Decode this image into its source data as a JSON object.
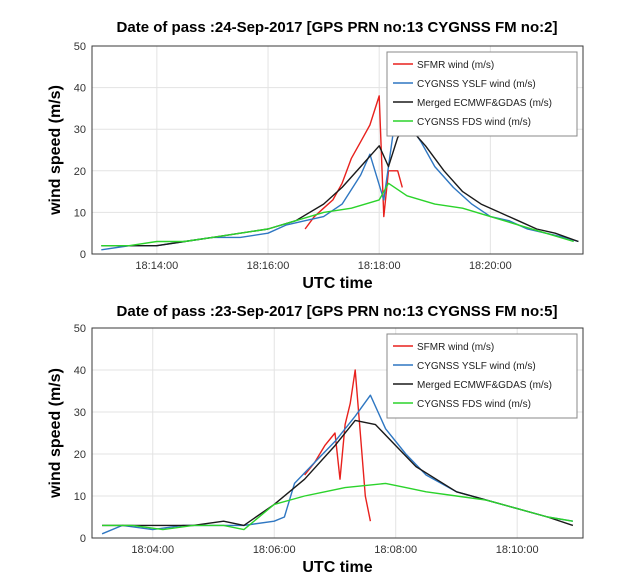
{
  "chart_data": [
    {
      "type": "line",
      "title": "Date of pass :24-Sep-2017 [GPS PRN no:13 CYGNSS FM no:2]",
      "xlabel": "UTC time",
      "ylabel": "wind speed (m/s)",
      "xlim": [
        "18:12:50",
        "18:21:40"
      ],
      "ylim": [
        0,
        50
      ],
      "xticks": [
        "18:14:00",
        "18:16:00",
        "18:18:00",
        "18:20:00"
      ],
      "yticks": [
        0,
        10,
        20,
        30,
        40,
        50
      ],
      "grid": true,
      "legend_position": "top-right",
      "series": [
        {
          "name": "SFMR wind (m/s)",
          "color": "#e8211d",
          "x": [
            "18:16:40",
            "18:16:50",
            "18:17:00",
            "18:17:10",
            "18:17:20",
            "18:17:30",
            "18:17:40",
            "18:17:50",
            "18:18:00",
            "18:18:05",
            "18:18:10",
            "18:18:20",
            "18:18:25"
          ],
          "y": [
            6,
            9,
            11,
            13,
            17,
            23,
            27,
            31,
            38,
            9,
            20,
            20,
            16
          ]
        },
        {
          "name": "CYGNSS YSLF wind (m/s)",
          "color": "#2f77c2",
          "x": [
            "18:13:00",
            "18:13:30",
            "18:14:00",
            "18:14:30",
            "18:15:00",
            "18:15:30",
            "18:16:00",
            "18:16:20",
            "18:16:40",
            "18:17:00",
            "18:17:20",
            "18:17:40",
            "18:17:50",
            "18:18:05",
            "18:18:15",
            "18:18:30",
            "18:18:45",
            "18:19:00",
            "18:19:20",
            "18:19:40",
            "18:20:00",
            "18:20:20",
            "18:20:40",
            "18:21:00",
            "18:21:20",
            "18:21:35"
          ],
          "y": [
            1,
            2,
            2,
            3,
            4,
            4,
            5,
            7,
            8,
            9,
            12,
            19,
            24,
            13,
            29,
            32,
            27,
            21,
            16,
            12,
            9,
            8,
            6,
            5,
            4,
            3
          ]
        },
        {
          "name": "Merged ECMWF&GDAS (m/s)",
          "color": "#1a1a1a",
          "x": [
            "18:13:00",
            "18:13:30",
            "18:14:00",
            "18:14:30",
            "18:15:00",
            "18:15:30",
            "18:16:00",
            "18:16:30",
            "18:17:00",
            "18:17:20",
            "18:17:40",
            "18:18:00",
            "18:18:10",
            "18:18:20",
            "18:18:30",
            "18:18:50",
            "18:19:10",
            "18:19:30",
            "18:19:50",
            "18:20:10",
            "18:20:30",
            "18:20:50",
            "18:21:10",
            "18:21:35"
          ],
          "y": [
            2,
            2,
            2,
            3,
            4,
            5,
            6,
            8,
            12,
            16,
            21,
            26,
            21,
            28,
            31,
            26,
            20,
            15,
            12,
            10,
            8,
            6,
            5,
            3
          ]
        },
        {
          "name": "CYGNSS FDS wind (m/s)",
          "color": "#2bd32b",
          "x": [
            "18:13:00",
            "18:13:30",
            "18:14:00",
            "18:14:30",
            "18:15:00",
            "18:15:30",
            "18:16:00",
            "18:16:30",
            "18:17:00",
            "18:17:30",
            "18:18:00",
            "18:18:10",
            "18:18:30",
            "18:19:00",
            "18:19:30",
            "18:20:00",
            "18:20:30",
            "18:21:00",
            "18:21:30"
          ],
          "y": [
            2,
            2,
            3,
            3,
            4,
            5,
            6,
            8,
            10,
            11,
            13,
            17,
            14,
            12,
            11,
            9,
            7,
            5,
            3
          ]
        }
      ]
    },
    {
      "type": "line",
      "title": "Date of pass :23-Sep-2017 [GPS PRN no:13 CYGNSS FM no:5]",
      "xlabel": "UTC time",
      "ylabel": "wind speed (m/s)",
      "xlim": [
        "18:03:00",
        "18:11:05"
      ],
      "ylim": [
        0,
        50
      ],
      "xticks": [
        "18:04:00",
        "18:06:00",
        "18:08:00",
        "18:10:00"
      ],
      "yticks": [
        0,
        10,
        20,
        30,
        40,
        50
      ],
      "grid": true,
      "legend_position": "top-right",
      "series": [
        {
          "name": "SFMR wind (m/s)",
          "color": "#e8211d",
          "x": [
            "18:06:30",
            "18:06:40",
            "18:06:50",
            "18:07:00",
            "18:07:05",
            "18:07:10",
            "18:07:15",
            "18:07:20",
            "18:07:25",
            "18:07:30",
            "18:07:35"
          ],
          "y": [
            15,
            18,
            22,
            25,
            14,
            27,
            32,
            40,
            25,
            10,
            4
          ]
        },
        {
          "name": "CYGNSS YSLF wind (m/s)",
          "color": "#2f77c2",
          "x": [
            "18:03:10",
            "18:03:30",
            "18:04:00",
            "18:04:30",
            "18:05:00",
            "18:05:30",
            "18:06:00",
            "18:06:10",
            "18:06:20",
            "18:06:40",
            "18:07:00",
            "18:07:20",
            "18:07:35",
            "18:07:50",
            "18:08:10",
            "18:08:30",
            "18:09:00",
            "18:09:30",
            "18:10:00",
            "18:10:30",
            "18:10:55"
          ],
          "y": [
            1,
            3,
            2,
            3,
            3,
            3,
            4,
            5,
            13,
            18,
            23,
            29,
            34,
            26,
            20,
            15,
            11,
            9,
            7,
            5,
            4
          ]
        },
        {
          "name": "Merged ECMWF&GDAS (m/s)",
          "color": "#1a1a1a",
          "x": [
            "18:03:10",
            "18:03:40",
            "18:04:10",
            "18:04:40",
            "18:05:10",
            "18:05:30",
            "18:06:00",
            "18:06:30",
            "18:07:00",
            "18:07:20",
            "18:07:40",
            "18:08:00",
            "18:08:20",
            "18:08:40",
            "18:09:00",
            "18:09:30",
            "18:10:00",
            "18:10:30",
            "18:10:55"
          ],
          "y": [
            3,
            3,
            3,
            3,
            4,
            3,
            8,
            14,
            22,
            28,
            27,
            22,
            17,
            14,
            11,
            9,
            7,
            5,
            3
          ]
        },
        {
          "name": "CYGNSS FDS wind (m/s)",
          "color": "#2bd32b",
          "x": [
            "18:03:10",
            "18:03:40",
            "18:04:10",
            "18:04:40",
            "18:05:10",
            "18:05:30",
            "18:06:00",
            "18:06:30",
            "18:06:50",
            "18:07:10",
            "18:07:50",
            "18:08:10",
            "18:08:30",
            "18:09:00",
            "18:09:30",
            "18:10:00",
            "18:10:30",
            "18:10:55"
          ],
          "y": [
            3,
            3,
            2,
            3,
            3,
            2,
            8,
            10,
            11,
            12,
            13,
            12,
            11,
            10,
            9,
            7,
            5,
            4
          ]
        }
      ]
    }
  ]
}
